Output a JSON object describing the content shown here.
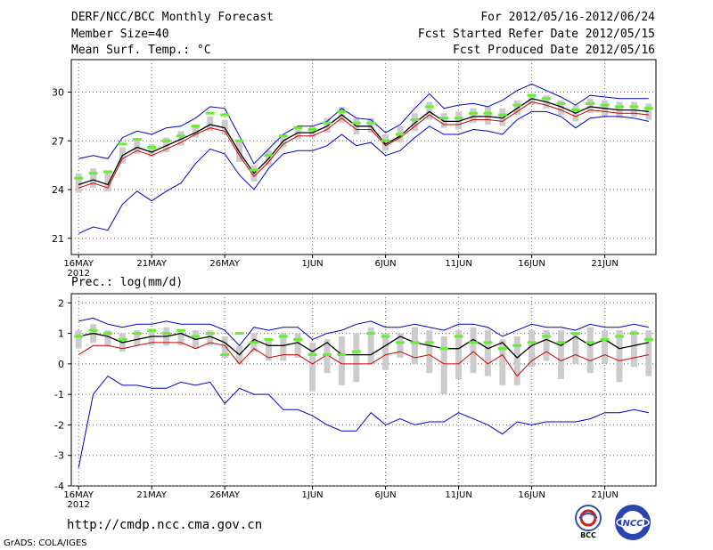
{
  "header": {
    "title": "DERF/NCC/BCC Monthly Forecast",
    "member_size": "Member Size=40",
    "variable": "Mean Surf. Temp.: °C",
    "period": "For 2012/05/16-2012/06/24",
    "start_date": "Fcst Started Refer Date 2012/05/15",
    "produced_date": "Fcst Produced Date 2012/05/16"
  },
  "footer": {
    "url": "http://cmdp.ncc.cma.gov.cn",
    "grads": "GrADS: COLA/IGES",
    "logo_bcc": "BCC",
    "logo_ncc": "NCC"
  },
  "colors": {
    "max_line": "#0000cc",
    "mean_line": "#000000",
    "median_line": "#cc0000",
    "box": "#cccccc",
    "obs_marker": "#66ee33"
  },
  "chart_data": [
    {
      "type": "line",
      "title": "",
      "ylabel": "°C",
      "ylim": [
        20,
        32
      ],
      "yticks": [
        21,
        24,
        27,
        30
      ],
      "xlim": [
        0,
        40
      ],
      "xticks": [
        {
          "x": 0.5,
          "label": "16MAY",
          "sub": "2012"
        },
        {
          "x": 5.5,
          "label": "21MAY"
        },
        {
          "x": 10.5,
          "label": "26MAY"
        },
        {
          "x": 16.5,
          "label": "1JUN"
        },
        {
          "x": 21.5,
          "label": "6JUN"
        },
        {
          "x": 26.5,
          "label": "11JUN"
        },
        {
          "x": 31.5,
          "label": "16JUN"
        },
        {
          "x": 36.5,
          "label": "21JUN"
        }
      ],
      "days": [
        1,
        2,
        3,
        4,
        5,
        6,
        7,
        8,
        9,
        10,
        11,
        12,
        13,
        14,
        15,
        16,
        17,
        18,
        19,
        20,
        21,
        22,
        23,
        24,
        25,
        26,
        27,
        28,
        29,
        30,
        31,
        32,
        33,
        34,
        35,
        36,
        37,
        38,
        39,
        40
      ],
      "series": [
        {
          "name": "max",
          "values": [
            25.9,
            26.1,
            25.9,
            27.2,
            27.6,
            27.4,
            27.8,
            27.9,
            28.4,
            29.1,
            29.0,
            27.3,
            25.6,
            26.5,
            27.4,
            27.9,
            27.9,
            28.2,
            29.0,
            28.4,
            28.3,
            27.5,
            28.0,
            29.0,
            29.9,
            29.0,
            29.2,
            29.3,
            29.1,
            29.5,
            30.1,
            30.5,
            30.1,
            29.7,
            29.2,
            29.8,
            29.7,
            29.6,
            29.6,
            29.6
          ]
        },
        {
          "name": "mean",
          "values": [
            24.3,
            24.6,
            24.3,
            26.1,
            26.6,
            26.3,
            26.7,
            27.1,
            27.5,
            28.0,
            27.8,
            26.3,
            25.0,
            25.9,
            27.0,
            27.5,
            27.5,
            27.9,
            28.6,
            27.9,
            27.9,
            26.8,
            27.3,
            28.1,
            28.8,
            28.2,
            28.2,
            28.5,
            28.5,
            28.4,
            29.0,
            29.6,
            29.4,
            29.1,
            28.7,
            29.1,
            29.0,
            28.9,
            28.9,
            28.8
          ]
        },
        {
          "name": "median",
          "values": [
            24.1,
            24.4,
            24.1,
            25.9,
            26.4,
            26.1,
            26.5,
            26.9,
            27.4,
            27.8,
            27.6,
            26.1,
            24.8,
            25.7,
            26.8,
            27.3,
            27.3,
            27.7,
            28.4,
            27.7,
            27.7,
            26.7,
            27.2,
            27.9,
            28.6,
            28.0,
            28.0,
            28.3,
            28.3,
            28.2,
            28.8,
            29.4,
            29.2,
            28.9,
            28.5,
            28.9,
            28.8,
            28.7,
            28.7,
            28.6
          ]
        },
        {
          "name": "min",
          "values": [
            21.3,
            21.7,
            21.5,
            23.1,
            23.9,
            23.3,
            23.9,
            24.4,
            25.6,
            26.5,
            26.2,
            24.9,
            24.0,
            25.3,
            26.2,
            26.4,
            26.4,
            26.7,
            27.4,
            26.7,
            26.9,
            26.1,
            26.4,
            27.2,
            27.9,
            27.4,
            27.4,
            27.7,
            27.6,
            27.4,
            28.3,
            28.8,
            28.8,
            28.5,
            27.8,
            28.4,
            28.5,
            28.5,
            28.4,
            28.2
          ]
        },
        {
          "name": "box_low",
          "values": [
            23.8,
            24.1,
            23.9,
            25.6,
            26.2,
            26.0,
            26.3,
            26.7,
            27.2,
            27.6,
            27.4,
            25.7,
            24.5,
            25.5,
            26.6,
            27.1,
            27.2,
            27.5,
            28.1,
            27.4,
            27.5,
            26.4,
            26.9,
            27.6,
            28.3,
            27.8,
            27.7,
            28.1,
            28.0,
            27.9,
            28.6,
            29.2,
            29.0,
            28.6,
            28.2,
            28.7,
            28.5,
            28.4,
            28.5,
            28.3
          ]
        },
        {
          "name": "box_high",
          "values": [
            25.0,
            25.3,
            25.1,
            26.6,
            27.1,
            26.8,
            27.2,
            27.6,
            28.0,
            28.5,
            28.3,
            27.0,
            25.5,
            26.4,
            27.4,
            27.9,
            27.9,
            28.4,
            29.1,
            28.4,
            28.4,
            27.4,
            27.9,
            28.7,
            29.4,
            28.7,
            28.8,
            29.0,
            29.1,
            29.0,
            29.5,
            29.9,
            29.8,
            29.5,
            29.2,
            29.6,
            29.5,
            29.4,
            29.4,
            29.3
          ]
        },
        {
          "name": "observed",
          "values": [
            24.7,
            25.0,
            25.1,
            26.8,
            27.1,
            26.6,
            27.0,
            27.3,
            27.9,
            28.7,
            28.6,
            27.0,
            25.2,
            26.1,
            27.3,
            27.8,
            27.7,
            28.1,
            28.8,
            28.1,
            28.1,
            27.0,
            27.4,
            28.3,
            29.1,
            28.4,
            28.4,
            28.7,
            28.7,
            28.6,
            29.2,
            29.8,
            29.6,
            29.3,
            28.9,
            29.3,
            29.2,
            29.1,
            29.1,
            29.0
          ]
        }
      ]
    },
    {
      "type": "line",
      "title": "Prec.: log(mm/d)",
      "ylabel": "log(mm/d)",
      "ylim": [
        -4,
        2.3
      ],
      "yticks": [
        -4,
        -3,
        -2,
        -1,
        0,
        1,
        2
      ],
      "xlim": [
        0,
        40
      ],
      "xticks": [
        {
          "x": 0.5,
          "label": "16MAY",
          "sub": "2012"
        },
        {
          "x": 5.5,
          "label": "21MAY"
        },
        {
          "x": 10.5,
          "label": "26MAY"
        },
        {
          "x": 16.5,
          "label": "1JUN"
        },
        {
          "x": 21.5,
          "label": "6JUN"
        },
        {
          "x": 26.5,
          "label": "11JUN"
        },
        {
          "x": 31.5,
          "label": "16JUN"
        },
        {
          "x": 36.5,
          "label": "21JUN"
        }
      ],
      "days": [
        1,
        2,
        3,
        4,
        5,
        6,
        7,
        8,
        9,
        10,
        11,
        12,
        13,
        14,
        15,
        16,
        17,
        18,
        19,
        20,
        21,
        22,
        23,
        24,
        25,
        26,
        27,
        28,
        29,
        30,
        31,
        32,
        33,
        34,
        35,
        36,
        37,
        38,
        39,
        40
      ],
      "series": [
        {
          "name": "max",
          "values": [
            1.4,
            1.5,
            1.3,
            1.2,
            1.3,
            1.3,
            1.4,
            1.3,
            1.3,
            1.3,
            1.1,
            0.6,
            1.2,
            1.1,
            1.2,
            1.2,
            0.8,
            1.0,
            1.1,
            1.3,
            1.4,
            1.2,
            1.2,
            1.3,
            1.2,
            1.1,
            1.3,
            1.3,
            1.2,
            0.9,
            1.1,
            1.3,
            1.2,
            1.2,
            1.1,
            1.3,
            1.2,
            1.2,
            1.3,
            1.2
          ]
        },
        {
          "name": "mean",
          "values": [
            0.9,
            1.0,
            0.9,
            0.7,
            0.8,
            0.9,
            0.9,
            1.0,
            0.8,
            0.9,
            0.7,
            0.3,
            0.8,
            0.6,
            0.6,
            0.7,
            0.4,
            0.7,
            0.3,
            0.3,
            0.3,
            0.6,
            0.9,
            0.7,
            0.6,
            0.5,
            0.5,
            0.8,
            0.5,
            0.7,
            0.2,
            0.6,
            0.8,
            0.6,
            0.9,
            0.6,
            0.8,
            0.5,
            0.6,
            0.7
          ]
        },
        {
          "name": "median",
          "values": [
            0.3,
            0.6,
            0.6,
            0.5,
            0.6,
            0.7,
            0.7,
            0.7,
            0.5,
            0.7,
            0.6,
            0.0,
            0.5,
            0.2,
            0.3,
            0.3,
            0.0,
            0.3,
            0.0,
            0.0,
            0.0,
            0.3,
            0.4,
            0.2,
            0.3,
            0.0,
            0.0,
            0.4,
            0.0,
            0.3,
            -0.4,
            0.1,
            0.4,
            0.1,
            0.3,
            0.1,
            0.3,
            0.1,
            0.2,
            0.3
          ]
        },
        {
          "name": "min",
          "values": [
            -3.4,
            -1.0,
            -0.4,
            -0.7,
            -0.7,
            -0.8,
            -0.8,
            -0.6,
            -0.7,
            -0.6,
            -1.3,
            -0.8,
            -1.0,
            -1.0,
            -1.5,
            -1.5,
            -1.7,
            -2.0,
            -2.2,
            -2.2,
            -1.6,
            -2.0,
            -1.8,
            -2.0,
            -1.9,
            -1.9,
            -1.6,
            -1.8,
            -2.0,
            -2.3,
            -1.9,
            -2.0,
            -1.9,
            -1.9,
            -1.9,
            -1.8,
            -1.6,
            -1.6,
            -1.5,
            -1.6
          ]
        },
        {
          "name": "box_low",
          "values": [
            0.5,
            0.7,
            0.6,
            0.4,
            0.6,
            0.6,
            0.6,
            0.6,
            0.5,
            0.6,
            0.2,
            0.0,
            0.4,
            0.1,
            0.1,
            0.2,
            -0.9,
            -0.3,
            -0.7,
            -0.6,
            0.0,
            -0.2,
            0.2,
            0.0,
            -0.3,
            -1.0,
            -0.5,
            -0.3,
            -0.4,
            -0.7,
            -0.7,
            -0.1,
            0.1,
            -0.5,
            0.0,
            -0.3,
            0.0,
            -0.6,
            -0.1,
            -0.4
          ]
        },
        {
          "name": "box_high",
          "values": [
            1.1,
            1.3,
            1.1,
            1.0,
            1.1,
            1.1,
            1.2,
            1.1,
            1.1,
            1.1,
            0.9,
            0.6,
            1.0,
            0.8,
            1.0,
            1.0,
            0.7,
            0.8,
            0.9,
            1.0,
            1.2,
            1.0,
            1.0,
            1.2,
            1.1,
            0.9,
            1.1,
            1.2,
            1.1,
            0.8,
            0.9,
            1.1,
            1.1,
            1.1,
            1.0,
            1.2,
            1.1,
            1.1,
            1.1,
            1.1
          ]
        },
        {
          "name": "observed",
          "values": [
            0.9,
            1.1,
            1.0,
            0.8,
            1.0,
            1.1,
            1.0,
            1.1,
            0.9,
            1.0,
            0.3,
            1.0,
            0.7,
            0.8,
            0.9,
            0.8,
            0.3,
            0.3,
            0.3,
            0.4,
            1.0,
            0.9,
            0.7,
            0.7,
            0.7,
            0.5,
            0.9,
            0.7,
            0.7,
            0.5,
            0.6,
            0.7,
            0.9,
            0.7,
            1.0,
            0.7,
            0.8,
            0.9,
            1.0,
            0.8
          ]
        }
      ]
    }
  ]
}
